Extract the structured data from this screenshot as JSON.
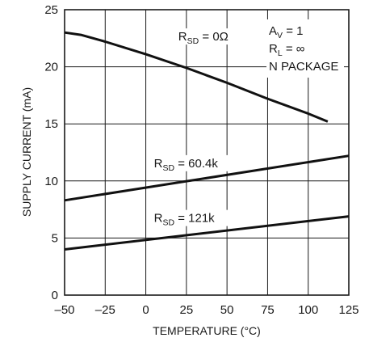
{
  "chart_data": {
    "type": "line",
    "xlabel": "TEMPERATURE (°C)",
    "ylabel": "SUPPLY CURRENT (mA)",
    "xlim": [
      -50,
      125
    ],
    "ylim": [
      0,
      25
    ],
    "x_ticks": [
      "–50",
      "–25",
      "0",
      "25",
      "50",
      "75",
      "100",
      "125"
    ],
    "y_ticks": [
      "0",
      "5",
      "10",
      "15",
      "20",
      "25"
    ],
    "grid": true,
    "series": [
      {
        "name": "RSD = 0Ω",
        "label_main": "R",
        "label_sub": "SD",
        "label_rest": " = 0Ω",
        "x": [
          -50,
          -40,
          -25,
          0,
          25,
          50,
          75,
          100,
          112
        ],
        "y": [
          23.0,
          22.8,
          22.2,
          21.1,
          19.9,
          18.6,
          17.2,
          15.9,
          15.2
        ]
      },
      {
        "name": "RSD = 60.4k",
        "label_main": "R",
        "label_sub": "SD",
        "label_rest": " = 60.4k",
        "x": [
          -50,
          125
        ],
        "y": [
          8.3,
          12.2
        ]
      },
      {
        "name": "RSD = 121k",
        "label_main": "R",
        "label_sub": "SD",
        "label_rest": " = 121k",
        "x": [
          -50,
          125
        ],
        "y": [
          4.0,
          6.9
        ]
      }
    ],
    "conditions": [
      {
        "main": "A",
        "sub": "V",
        "rest": " = 1"
      },
      {
        "main": "R",
        "sub": "L",
        "rest": " = ∞"
      },
      {
        "main": "N PACKAGE",
        "sub": "",
        "rest": ""
      }
    ]
  }
}
